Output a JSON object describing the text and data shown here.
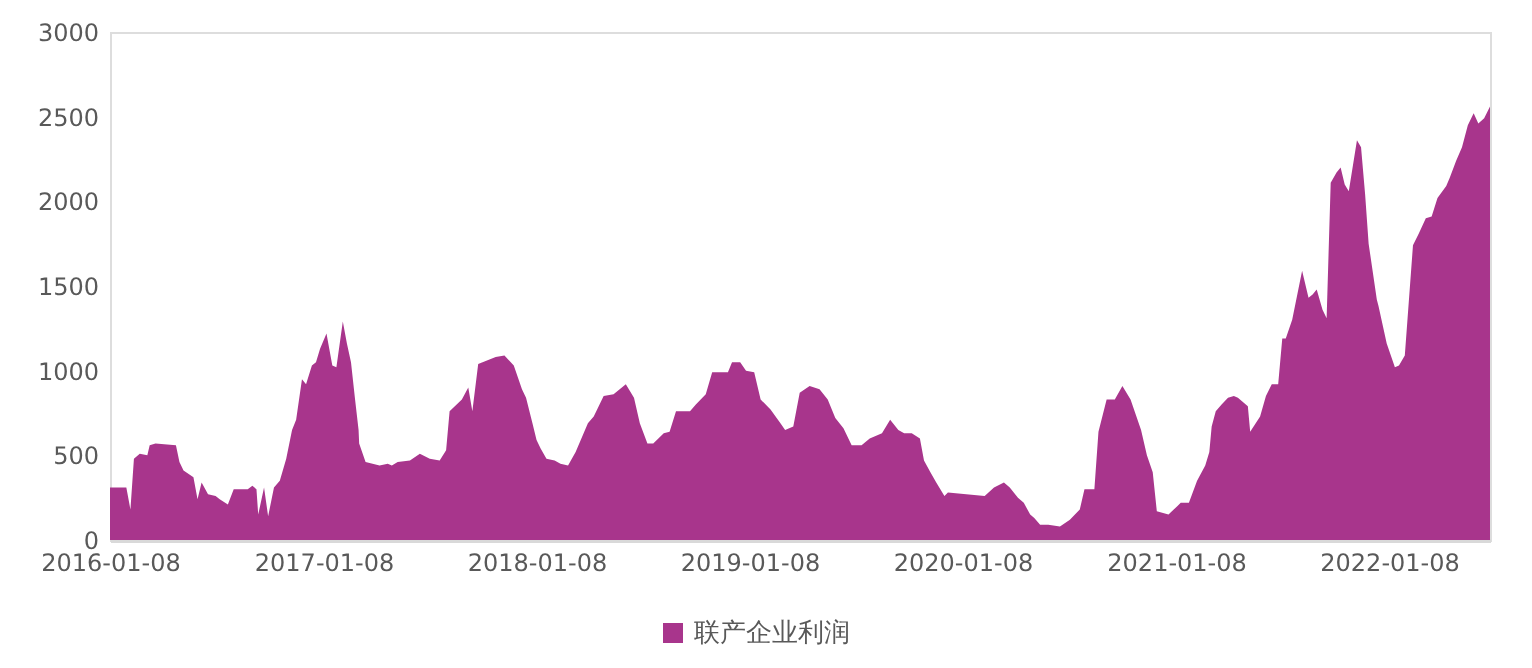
{
  "chart_data": {
    "type": "area",
    "x": [
      "2016-01-08",
      "2016-02-05",
      "2016-02-12",
      "2016-02-18",
      "2016-02-28",
      "2016-03-12",
      "2016-03-16",
      "2016-03-26",
      "2016-04-30",
      "2016-05-06",
      "2016-05-13",
      "2016-05-30",
      "2016-06-06",
      "2016-06-13",
      "2016-06-24",
      "2016-07-07",
      "2016-07-14",
      "2016-07-28",
      "2016-08-07",
      "2016-08-31",
      "2016-09-08",
      "2016-09-15",
      "2016-09-18",
      "2016-09-28",
      "2016-10-05",
      "2016-10-15",
      "2016-10-25",
      "2016-11-05",
      "2016-11-15",
      "2016-11-22",
      "2016-12-02",
      "2016-12-09",
      "2016-12-19",
      "2016-12-26",
      "2017-01-02",
      "2017-01-13",
      "2017-01-23",
      "2017-01-30",
      "2017-02-10",
      "2017-02-17",
      "2017-02-24",
      "2017-03-03",
      "2017-03-09",
      "2017-03-10",
      "2017-03-21",
      "2017-04-14",
      "2017-04-28",
      "2017-05-05",
      "2017-05-15",
      "2017-06-05",
      "2017-06-22",
      "2017-07-09",
      "2017-07-26",
      "2017-08-06",
      "2017-08-12",
      "2017-09-02",
      "2017-09-13",
      "2017-09-20",
      "2017-09-30",
      "2017-10-30",
      "2017-11-14",
      "2017-11-30",
      "2017-12-14",
      "2017-12-21",
      "2018-01-01",
      "2018-01-08",
      "2018-01-15",
      "2018-01-25",
      "2018-02-08",
      "2018-02-18",
      "2018-03-03",
      "2018-03-16",
      "2018-04-06",
      "2018-04-16",
      "2018-05-03",
      "2018-05-20",
      "2018-06-10",
      "2018-06-24",
      "2018-07-04",
      "2018-07-17",
      "2018-07-27",
      "2018-08-14",
      "2018-08-24",
      "2018-09-04",
      "2018-09-28",
      "2018-10-08",
      "2018-10-25",
      "2018-11-05",
      "2018-12-02",
      "2018-12-09",
      "2018-12-23",
      "2019-01-02",
      "2019-01-16",
      "2019-01-27",
      "2019-02-13",
      "2019-03-02",
      "2019-03-10",
      "2019-03-24",
      "2019-04-04",
      "2019-04-21",
      "2019-05-08",
      "2019-05-22",
      "2019-06-04",
      "2019-06-18",
      "2019-07-02",
      "2019-07-19",
      "2019-08-02",
      "2019-08-23",
      "2019-09-06",
      "2019-09-20",
      "2019-09-30",
      "2019-10-13",
      "2019-10-27",
      "2019-11-03",
      "2019-11-14",
      "2019-11-24",
      "2019-12-08",
      "2019-12-14",
      "2020-02-15",
      "2020-03-02",
      "2020-03-19",
      "2020-03-29",
      "2020-04-12",
      "2020-04-22",
      "2020-05-03",
      "2020-05-10",
      "2020-05-20",
      "2020-06-03",
      "2020-06-23",
      "2020-07-10",
      "2020-07-27",
      "2020-08-04",
      "2020-08-21",
      "2020-08-28",
      "2020-09-11",
      "2020-09-25",
      "2020-10-08",
      "2020-10-22",
      "2020-11-09",
      "2020-11-19",
      "2020-11-29",
      "2020-12-06",
      "2020-12-26",
      "2021-01-10",
      "2021-01-16",
      "2021-01-30",
      "2021-02-13",
      "2021-02-27",
      "2021-03-06",
      "2021-03-10",
      "2021-03-17",
      "2021-03-27",
      "2021-04-07",
      "2021-04-17",
      "2021-04-24",
      "2021-05-01",
      "2021-05-11",
      "2021-05-15",
      "2021-06-01",
      "2021-06-11",
      "2021-06-21",
      "2021-07-02",
      "2021-07-09",
      "2021-07-15",
      "2021-07-26",
      "2021-08-12",
      "2021-08-23",
      "2021-08-30",
      "2021-09-06",
      "2021-09-16",
      "2021-09-23",
      "2021-09-30",
      "2021-10-10",
      "2021-10-17",
      "2021-10-24",
      "2021-10-31",
      "2021-11-14",
      "2021-11-21",
      "2021-11-28",
      "2021-12-04",
      "2021-12-18",
      "2021-12-21",
      "2022-01-04",
      "2022-01-18",
      "2022-01-25",
      "2022-02-04",
      "2022-02-18",
      "2022-02-28",
      "2022-03-12",
      "2022-03-22",
      "2022-04-01",
      "2022-04-16",
      "2022-04-22",
      "2022-05-03",
      "2022-05-13",
      "2022-05-23",
      "2022-06-02",
      "2022-06-10",
      "2022-06-20",
      "2022-06-30"
    ],
    "series": [
      {
        "name": "联产企业利润",
        "color": "#a8358c",
        "values": [
          310,
          310,
          180,
          480,
          510,
          500,
          560,
          570,
          560,
          460,
          410,
          370,
          240,
          340,
          270,
          260,
          240,
          210,
          300,
          300,
          320,
          300,
          150,
          310,
          140,
          310,
          350,
          480,
          650,
          710,
          950,
          920,
          1030,
          1050,
          1130,
          1220,
          1030,
          1020,
          1290,
          1160,
          1050,
          830,
          650,
          570,
          460,
          440,
          450,
          440,
          460,
          470,
          510,
          480,
          470,
          530,
          760,
          830,
          900,
          760,
          1040,
          1080,
          1090,
          1030,
          890,
          840,
          690,
          590,
          540,
          480,
          470,
          450,
          440,
          520,
          690,
          730,
          850,
          860,
          920,
          840,
          690,
          570,
          570,
          630,
          640,
          760,
          760,
          800,
          860,
          990,
          990,
          1050,
          1050,
          1000,
          990,
          830,
          770,
          690,
          650,
          670,
          870,
          910,
          890,
          830,
          720,
          660,
          560,
          560,
          600,
          630,
          710,
          650,
          630,
          630,
          600,
          470,
          400,
          340,
          260,
          280,
          260,
          310,
          340,
          310,
          250,
          220,
          150,
          130,
          90,
          90,
          80,
          120,
          180,
          300,
          300,
          640,
          830,
          830,
          910,
          830,
          650,
          500,
          400,
          170,
          150,
          200,
          220,
          220,
          350,
          440,
          520,
          670,
          760,
          800,
          840,
          850,
          840,
          820,
          790,
          640,
          730,
          850,
          920,
          920,
          1190,
          1190,
          1300,
          1590,
          1430,
          1450,
          1480,
          1360,
          1310,
          2110,
          2170,
          2200,
          2100,
          2060,
          2360,
          2320,
          2040,
          1750,
          1420,
          1380,
          1160,
          1020,
          1030,
          1090,
          1740,
          1810,
          1900,
          1910,
          2020,
          2090,
          2140,
          2240,
          2320,
          2450,
          2520,
          2460,
          2490,
          2560
        ]
      }
    ],
    "xlim": [
      "2016-01-08",
      "2022-06-30"
    ],
    "xticks": [
      "2016-01-08",
      "2017-01-08",
      "2018-01-08",
      "2019-01-08",
      "2020-01-08",
      "2021-01-08",
      "2022-01-08"
    ],
    "ylim": [
      0,
      3000
    ],
    "yticks": [
      0,
      500,
      1000,
      1500,
      2000,
      2500,
      3000
    ],
    "grid": false,
    "legend": "bottom"
  }
}
